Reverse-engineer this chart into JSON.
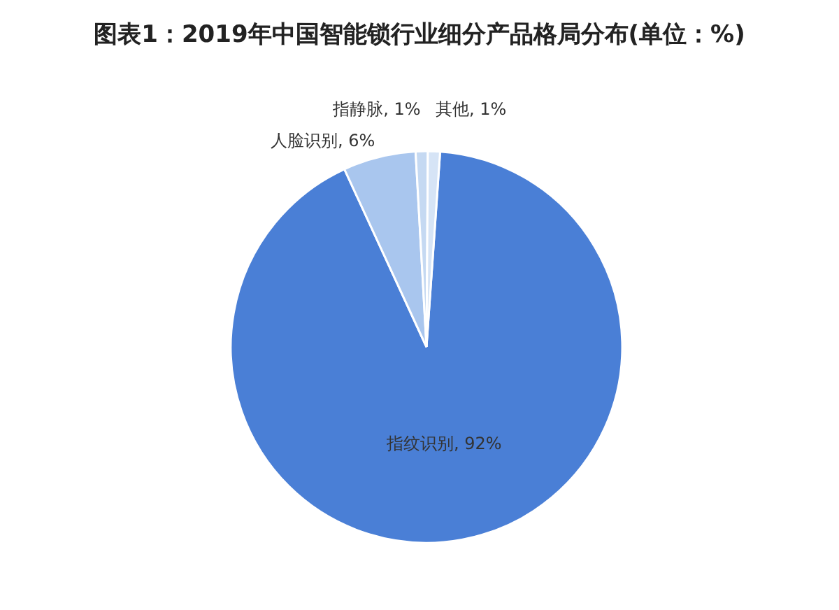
{
  "chart_data": {
    "type": "pie",
    "title": "图表1：2019年中国智能锁行业细分产品格局分布(单位：%)",
    "categories": [
      "指纹识别",
      "人脸识别",
      "指静脉",
      "其他"
    ],
    "values": [
      92,
      6,
      1,
      1
    ],
    "value_labels": [
      ", 92%",
      ", 6%",
      ", 1%",
      ", 1%"
    ],
    "colors": [
      "#4a7fd6",
      "#a9c6ee",
      "#c5d9f2",
      "#d6e4f6"
    ],
    "legend": false
  }
}
